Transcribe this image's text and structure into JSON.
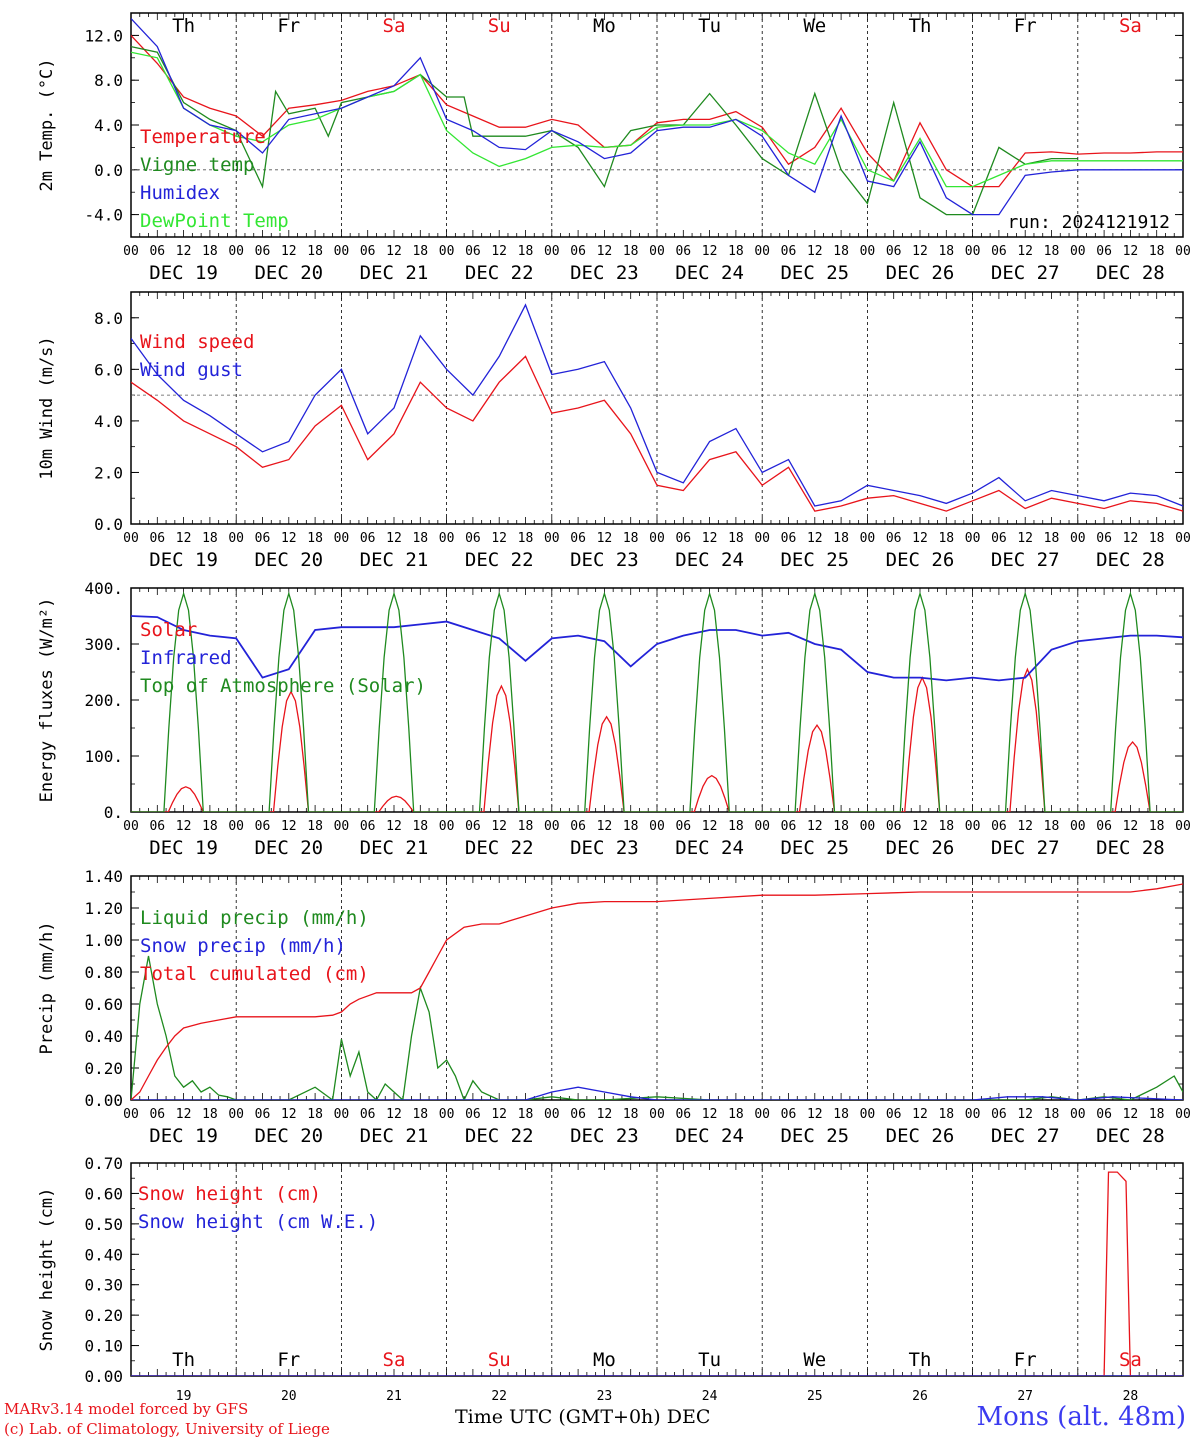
{
  "footer": {
    "model": "MARv3.14 model forced by GFS",
    "credit": "(c) Lab. of Climatology, University of Liege",
    "xlabel": "Time UTC (GMT+0h) DEC",
    "station": "Mons (alt. 48m)",
    "run": "run: 2024121912"
  },
  "colors": {
    "red": "#e8141b",
    "green": "#1f8a1f",
    "blue": "#2323d8",
    "lightgreen": "#33e633",
    "weekend": "#e8141b",
    "grid": "#000000"
  },
  "days": {
    "labels": [
      "DEC 19",
      "DEC 20",
      "DEC 21",
      "DEC 22",
      "DEC 23",
      "DEC 24",
      "DEC 25",
      "DEC 26",
      "DEC 27",
      "DEC 28"
    ],
    "weekday": [
      "Th",
      "Fr",
      "Sa",
      "Su",
      "Mo",
      "Tu",
      "We",
      "Th",
      "Fr",
      "Sa"
    ],
    "weekend": [
      false,
      false,
      true,
      true,
      false,
      false,
      false,
      false,
      false,
      true
    ],
    "numbers": [
      "19",
      "20",
      "21",
      "22",
      "23",
      "24",
      "25",
      "26",
      "27",
      "28"
    ],
    "hour_ticks": [
      "00",
      "06",
      "12",
      "18"
    ],
    "final_tick": "00"
  },
  "chart_data": [
    {
      "id": "temp",
      "type": "line",
      "ylabel": "2m Temp. (°C)",
      "ylim": [
        -6,
        14
      ],
      "yticks": [
        -4,
        0,
        4,
        8,
        12
      ],
      "ytick_labels": [
        "-4.0",
        "0.0",
        "4.0",
        "8.0",
        "12.0"
      ],
      "hline": 0,
      "x_unit": "hours since DEC 19 00 UTC",
      "series": [
        {
          "name": "Temperature",
          "color": "red",
          "x": [
            0,
            6,
            12,
            18,
            24,
            30,
            36,
            42,
            48,
            54,
            60,
            66,
            72,
            78,
            84,
            90,
            96,
            102,
            108,
            114,
            120,
            126,
            132,
            138,
            144,
            150,
            156,
            162,
            168,
            174,
            180,
            186,
            192,
            198,
            204,
            210,
            216,
            222,
            228,
            234,
            240
          ],
          "y": [
            12.0,
            9.5,
            6.5,
            5.5,
            4.8,
            3.0,
            5.5,
            5.8,
            6.2,
            7.0,
            7.5,
            8.5,
            5.8,
            4.8,
            3.8,
            3.8,
            4.5,
            4.0,
            2.0,
            2.2,
            4.2,
            4.5,
            4.5,
            5.2,
            3.8,
            0.5,
            2.0,
            5.5,
            1.5,
            -1.0,
            4.2,
            0.0,
            -1.5,
            -1.5,
            1.5,
            1.6,
            1.4,
            1.5,
            1.5,
            1.6,
            1.6
          ]
        },
        {
          "name": "Vigne temp",
          "color": "green",
          "x": [
            0,
            6,
            12,
            18,
            24,
            30,
            33,
            36,
            42,
            45,
            48,
            54,
            60,
            66,
            72,
            76,
            78,
            84,
            90,
            96,
            102,
            108,
            111,
            114,
            120,
            126,
            132,
            138,
            144,
            150,
            156,
            162,
            168,
            174,
            180,
            186,
            192,
            198,
            204,
            210,
            216
          ],
          "y": [
            11.0,
            10.5,
            6.0,
            4.5,
            3.5,
            -1.5,
            7.0,
            5.0,
            5.5,
            3.0,
            6.0,
            6.5,
            7.0,
            8.5,
            6.5,
            6.5,
            3.0,
            3.0,
            3.0,
            3.5,
            2.0,
            -1.5,
            2.0,
            3.5,
            4.0,
            4.0,
            6.8,
            4.0,
            1.0,
            -0.5,
            6.8,
            0.0,
            -3.0,
            6.0,
            -2.5,
            -4.0,
            -4.0,
            2.0,
            0.5,
            1.0,
            1.0
          ]
        },
        {
          "name": "Humidex",
          "color": "blue",
          "x": [
            0,
            6,
            12,
            18,
            24,
            30,
            36,
            42,
            48,
            54,
            60,
            66,
            72,
            78,
            84,
            90,
            96,
            102,
            108,
            114,
            120,
            126,
            132,
            138,
            144,
            150,
            156,
            162,
            168,
            174,
            180,
            186,
            192,
            198,
            204,
            210,
            216,
            222,
            228,
            234,
            240
          ],
          "y": [
            13.5,
            11.0,
            5.5,
            4.0,
            3.5,
            1.5,
            4.5,
            5.0,
            5.5,
            6.5,
            7.5,
            10.0,
            4.5,
            3.5,
            2.0,
            1.8,
            3.5,
            2.5,
            1.0,
            1.5,
            3.5,
            3.8,
            3.8,
            4.5,
            3.0,
            -0.5,
            -2.0,
            4.8,
            -1.0,
            -1.5,
            2.5,
            -2.5,
            -4.0,
            -4.0,
            -0.5,
            -0.2,
            0.0,
            0.0,
            0.0,
            0.0,
            0.0
          ]
        },
        {
          "name": "DewPoint Temp",
          "color": "lightgreen",
          "x": [
            0,
            6,
            12,
            18,
            24,
            30,
            36,
            42,
            48,
            54,
            60,
            66,
            72,
            78,
            84,
            90,
            96,
            102,
            108,
            114,
            120,
            126,
            132,
            138,
            144,
            150,
            156,
            162,
            168,
            174,
            180,
            186,
            192,
            198,
            204,
            210,
            216,
            222,
            228,
            234,
            240
          ],
          "y": [
            10.5,
            10.0,
            5.5,
            4.0,
            3.0,
            2.5,
            4.0,
            4.5,
            5.5,
            6.5,
            7.0,
            8.5,
            3.5,
            1.5,
            0.3,
            1.0,
            2.0,
            2.2,
            2.0,
            2.2,
            3.8,
            4.0,
            4.0,
            4.5,
            3.5,
            1.5,
            0.5,
            4.5,
            0.0,
            -1.0,
            2.8,
            -1.5,
            -1.5,
            -0.5,
            0.5,
            0.8,
            0.8,
            0.8,
            0.8,
            0.8,
            0.8
          ]
        }
      ]
    },
    {
      "id": "wind",
      "type": "line",
      "ylabel": "10m Wind (m/s)",
      "ylim": [
        0,
        9
      ],
      "yticks": [
        0,
        2,
        4,
        6,
        8
      ],
      "ytick_labels": [
        "0.0",
        "2.0",
        "4.0",
        "6.0",
        "8.0"
      ],
      "hline": 5,
      "series": [
        {
          "name": "Wind speed",
          "color": "red",
          "x": [
            0,
            6,
            12,
            18,
            24,
            30,
            36,
            42,
            48,
            54,
            60,
            66,
            72,
            78,
            84,
            90,
            96,
            102,
            108,
            114,
            120,
            126,
            132,
            138,
            144,
            150,
            156,
            162,
            168,
            174,
            180,
            186,
            192,
            198,
            204,
            210,
            216,
            222,
            228,
            234,
            240
          ],
          "y": [
            5.5,
            4.8,
            4.0,
            3.5,
            3.0,
            2.2,
            2.5,
            3.8,
            4.6,
            2.5,
            3.5,
            5.5,
            4.5,
            4.0,
            5.5,
            6.5,
            4.3,
            4.5,
            4.8,
            3.5,
            1.5,
            1.3,
            2.5,
            2.8,
            1.5,
            2.2,
            0.5,
            0.7,
            1.0,
            1.1,
            0.8,
            0.5,
            0.9,
            1.3,
            0.6,
            1.0,
            0.8,
            0.6,
            0.9,
            0.8,
            0.5
          ]
        },
        {
          "name": "Wind gust",
          "color": "blue",
          "x": [
            0,
            6,
            12,
            18,
            24,
            30,
            36,
            42,
            48,
            54,
            60,
            66,
            72,
            78,
            84,
            90,
            96,
            102,
            108,
            114,
            120,
            126,
            132,
            138,
            144,
            150,
            156,
            162,
            168,
            174,
            180,
            186,
            192,
            198,
            204,
            210,
            216,
            222,
            228,
            234,
            240
          ],
          "y": [
            7.2,
            5.8,
            4.8,
            4.2,
            3.5,
            2.8,
            3.2,
            5.0,
            6.0,
            3.5,
            4.5,
            7.3,
            6.0,
            5.0,
            6.5,
            8.5,
            5.8,
            6.0,
            6.3,
            4.5,
            2.0,
            1.6,
            3.2,
            3.7,
            2.0,
            2.5,
            0.7,
            0.9,
            1.5,
            1.3,
            1.1,
            0.8,
            1.2,
            1.8,
            0.9,
            1.3,
            1.1,
            0.9,
            1.2,
            1.1,
            0.7
          ]
        }
      ]
    },
    {
      "id": "energy",
      "type": "line",
      "ylabel": "Energy fluxes (W/m²)",
      "ylim": [
        0,
        400
      ],
      "yticks": [
        0,
        100,
        200,
        300,
        400
      ],
      "ytick_labels": [
        "0.",
        "100.",
        "200.",
        "300.",
        "400."
      ],
      "series": [
        {
          "name": "Solar",
          "color": "red",
          "daily_peak_hour": 12.5,
          "daily_half_width_h": 4,
          "daily_peaks": [
            45,
            215,
            28,
            225,
            170,
            65,
            155,
            240,
            255,
            125
          ]
        },
        {
          "name": "Infrared",
          "color": "blue",
          "x": [
            0,
            6,
            12,
            18,
            24,
            30,
            36,
            42,
            48,
            54,
            60,
            66,
            72,
            78,
            84,
            90,
            96,
            102,
            108,
            114,
            120,
            126,
            132,
            138,
            144,
            150,
            156,
            162,
            168,
            174,
            180,
            186,
            192,
            198,
            204,
            210,
            216,
            222,
            228,
            234,
            240
          ],
          "y": [
            350,
            348,
            325,
            315,
            310,
            240,
            255,
            325,
            330,
            330,
            330,
            335,
            340,
            325,
            310,
            270,
            310,
            315,
            305,
            260,
            300,
            315,
            325,
            325,
            315,
            320,
            300,
            290,
            250,
            240,
            240,
            235,
            240,
            235,
            240,
            290,
            305,
            310,
            315,
            315,
            312
          ]
        },
        {
          "name": "Top of Atmosphere (Solar)",
          "color": "green",
          "daily_peak_hour": 12,
          "daily_half_width_h": 4.5,
          "daily_peaks": [
            390,
            390,
            390,
            390,
            390,
            390,
            390,
            390,
            390,
            390
          ]
        }
      ]
    },
    {
      "id": "precip",
      "type": "line",
      "ylabel": "Precip (mm/h)",
      "ylim": [
        0,
        1.4
      ],
      "yticks": [
        0,
        0.2,
        0.4,
        0.6,
        0.8,
        1.0,
        1.2,
        1.4
      ],
      "ytick_labels": [
        "0.00",
        "0.20",
        "0.40",
        "0.60",
        "0.80",
        "1.00",
        "1.20",
        "1.40"
      ],
      "series": [
        {
          "name": "Liquid precip (mm/h)",
          "color": "green",
          "x": [
            0,
            2,
            4,
            6,
            8,
            10,
            12,
            14,
            16,
            18,
            20,
            22,
            24,
            36,
            42,
            46,
            48,
            50,
            52,
            54,
            56,
            58,
            60,
            62,
            64,
            66,
            68,
            70,
            72,
            74,
            76,
            78,
            80,
            84,
            90,
            96,
            102,
            108,
            120,
            132,
            144,
            168,
            204,
            210,
            216,
            222,
            228,
            234,
            238,
            240
          ],
          "y": [
            0,
            0.6,
            0.9,
            0.6,
            0.4,
            0.15,
            0.08,
            0.12,
            0.05,
            0.08,
            0.03,
            0.02,
            0.0,
            0.0,
            0.08,
            0.0,
            0.38,
            0.15,
            0.3,
            0.05,
            0.0,
            0.1,
            0.05,
            0.0,
            0.4,
            0.7,
            0.55,
            0.2,
            0.25,
            0.15,
            0.0,
            0.12,
            0.05,
            0.0,
            0.0,
            0.02,
            0.0,
            0.0,
            0.02,
            0.0,
            0.0,
            0.0,
            0.0,
            0.02,
            0.0,
            0.02,
            0.0,
            0.08,
            0.15,
            0.05
          ]
        },
        {
          "name": "Snow precip (mm/h)",
          "color": "blue",
          "x": [
            0,
            90,
            96,
            102,
            108,
            114,
            120,
            144,
            192,
            200,
            208,
            216,
            224,
            232,
            240
          ],
          "y": [
            0,
            0,
            0.05,
            0.08,
            0.05,
            0.02,
            0,
            0,
            0,
            0.02,
            0.02,
            0.0,
            0.02,
            0.01,
            0
          ]
        },
        {
          "name": "Total cumulated (cm)",
          "color": "red",
          "x": [
            0,
            2,
            4,
            6,
            8,
            10,
            12,
            16,
            20,
            24,
            30,
            36,
            42,
            46,
            48,
            50,
            52,
            56,
            60,
            64,
            66,
            68,
            70,
            72,
            76,
            80,
            84,
            90,
            96,
            102,
            108,
            120,
            132,
            144,
            156,
            168,
            180,
            192,
            204,
            216,
            228,
            234,
            238,
            240
          ],
          "y": [
            0,
            0.05,
            0.15,
            0.25,
            0.33,
            0.4,
            0.45,
            0.48,
            0.5,
            0.52,
            0.52,
            0.52,
            0.52,
            0.53,
            0.55,
            0.6,
            0.63,
            0.67,
            0.67,
            0.67,
            0.7,
            0.8,
            0.9,
            1.0,
            1.08,
            1.1,
            1.1,
            1.15,
            1.2,
            1.23,
            1.24,
            1.24,
            1.26,
            1.28,
            1.28,
            1.29,
            1.3,
            1.3,
            1.3,
            1.3,
            1.3,
            1.32,
            1.34,
            1.35
          ]
        }
      ]
    },
    {
      "id": "snow",
      "type": "line",
      "ylabel": "Snow height (cm)",
      "ylim": [
        0,
        0.7
      ],
      "yticks": [
        0,
        0.1,
        0.2,
        0.3,
        0.4,
        0.5,
        0.6,
        0.7
      ],
      "ytick_labels": [
        "0.00",
        "0.10",
        "0.20",
        "0.30",
        "0.40",
        "0.50",
        "0.60",
        "0.70"
      ],
      "series": [
        {
          "name": "Snow height (cm)",
          "color": "red",
          "x": [
            0,
            222,
            223,
            225,
            227,
            228,
            240
          ],
          "y": [
            0,
            0,
            0.67,
            0.67,
            0.64,
            0,
            0
          ]
        },
        {
          "name": "Snow height (cm W.E.)",
          "color": "blue",
          "x": [
            0,
            240
          ],
          "y": [
            0,
            0
          ]
        }
      ]
    }
  ]
}
